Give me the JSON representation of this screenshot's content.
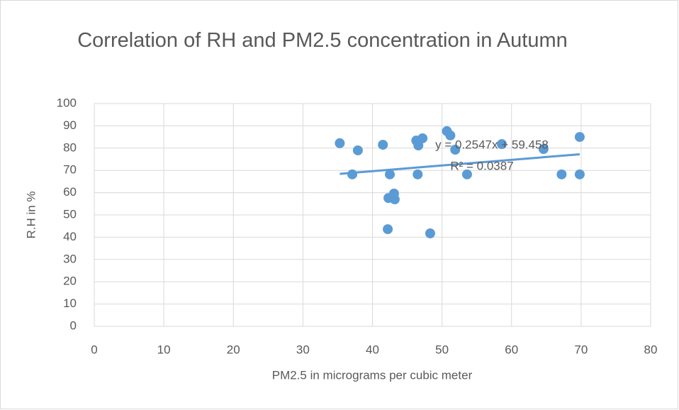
{
  "chart_data": {
    "type": "scatter",
    "title": "Correlation of RH and PM2.5 concentration in Autumn",
    "x_label": "PM2.5 in micrograms per cubic meter",
    "y_label": "R.H in %",
    "series": [
      {
        "name": "R.H",
        "color": "#5b9bd5",
        "x": [
          35.3,
          37.1,
          37.9,
          41.5,
          42.2,
          42.3,
          42.5,
          43.1,
          43.2,
          46.3,
          46.6,
          46.5,
          47.2,
          48.3,
          50.7,
          51.2,
          51.9,
          53.6,
          58.6,
          64.6,
          67.2,
          69.8,
          69.8
        ],
        "values": [
          82.2,
          68.2,
          79.0,
          81.5,
          43.6,
          57.6,
          68.2,
          59.6,
          57.0,
          83.4,
          81.2,
          68.2,
          84.4,
          41.7,
          87.6,
          85.7,
          79.3,
          68.2,
          81.8,
          79.6,
          68.2,
          85.0,
          68.2
        ]
      }
    ],
    "trendline": {
      "slope": 0.2547,
      "intercept": 59.458,
      "equation": "y = 0.2547x + 59.458",
      "r_squared": "R² = 0.0387"
    },
    "xlim": [
      0,
      80
    ],
    "xticks": [
      0,
      10,
      20,
      30,
      40,
      50,
      60,
      70,
      80
    ],
    "ylim": [
      0,
      100
    ],
    "yticks": [
      0,
      10,
      20,
      30,
      40,
      50,
      60,
      70,
      80,
      90,
      100
    ],
    "grid": true
  }
}
